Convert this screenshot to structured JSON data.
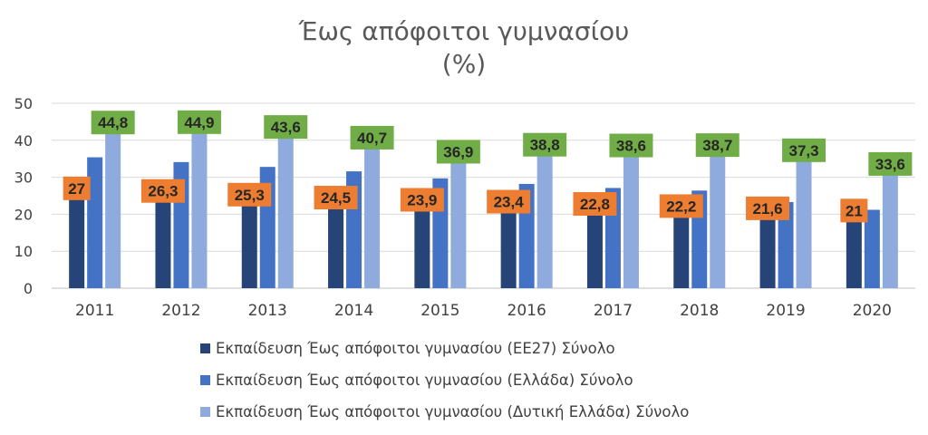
{
  "chart_data": {
    "type": "bar",
    "title": "Έως απόφοιτοι γυμνασίου",
    "subtitle": "(%)",
    "categories": [
      "2011",
      "2012",
      "2013",
      "2014",
      "2015",
      "2016",
      "2017",
      "2018",
      "2019",
      "2020"
    ],
    "ylim": [
      0,
      50
    ],
    "yticks": [
      0,
      10,
      20,
      30,
      40,
      50
    ],
    "grid": true,
    "legend_position": "bottom",
    "series": [
      {
        "name": "Εκπαίδευση Έως απόφοιτοι γυμνασίου (ΕΕ27) Σύνολο",
        "color": "#264478",
        "values": [
          27,
          26.3,
          25.3,
          24.5,
          23.9,
          23.4,
          22.8,
          22.2,
          21.6,
          21
        ],
        "labels": [
          "27",
          "26,3",
          "25,3",
          "24,5",
          "23,9",
          "23,4",
          "22,8",
          "22,2",
          "21,6",
          "21"
        ],
        "label_color": "#ED7D31"
      },
      {
        "name": "Εκπαίδευση Έως απόφοιτοι γυμνασίου (Ελλάδα) Σύνολο",
        "color": "#4472C4",
        "values": [
          35.4,
          34.1,
          32.8,
          31.6,
          29.7,
          28.2,
          27.1,
          26.4,
          23.3,
          21.2
        ]
      },
      {
        "name": "Εκπαίδευση Έως απόφοιτοι γυμνασίου (Δυτική Ελλάδα) Σύνολο",
        "color": "#8FAADC",
        "values": [
          44.8,
          44.9,
          43.6,
          40.7,
          36.9,
          38.8,
          38.6,
          38.7,
          37.3,
          33.6
        ],
        "labels": [
          "44,8",
          "44,9",
          "43,6",
          "40,7",
          "36,9",
          "38,8",
          "38,6",
          "38,7",
          "37,3",
          "33,6"
        ],
        "label_color": "#70AD47"
      }
    ]
  }
}
